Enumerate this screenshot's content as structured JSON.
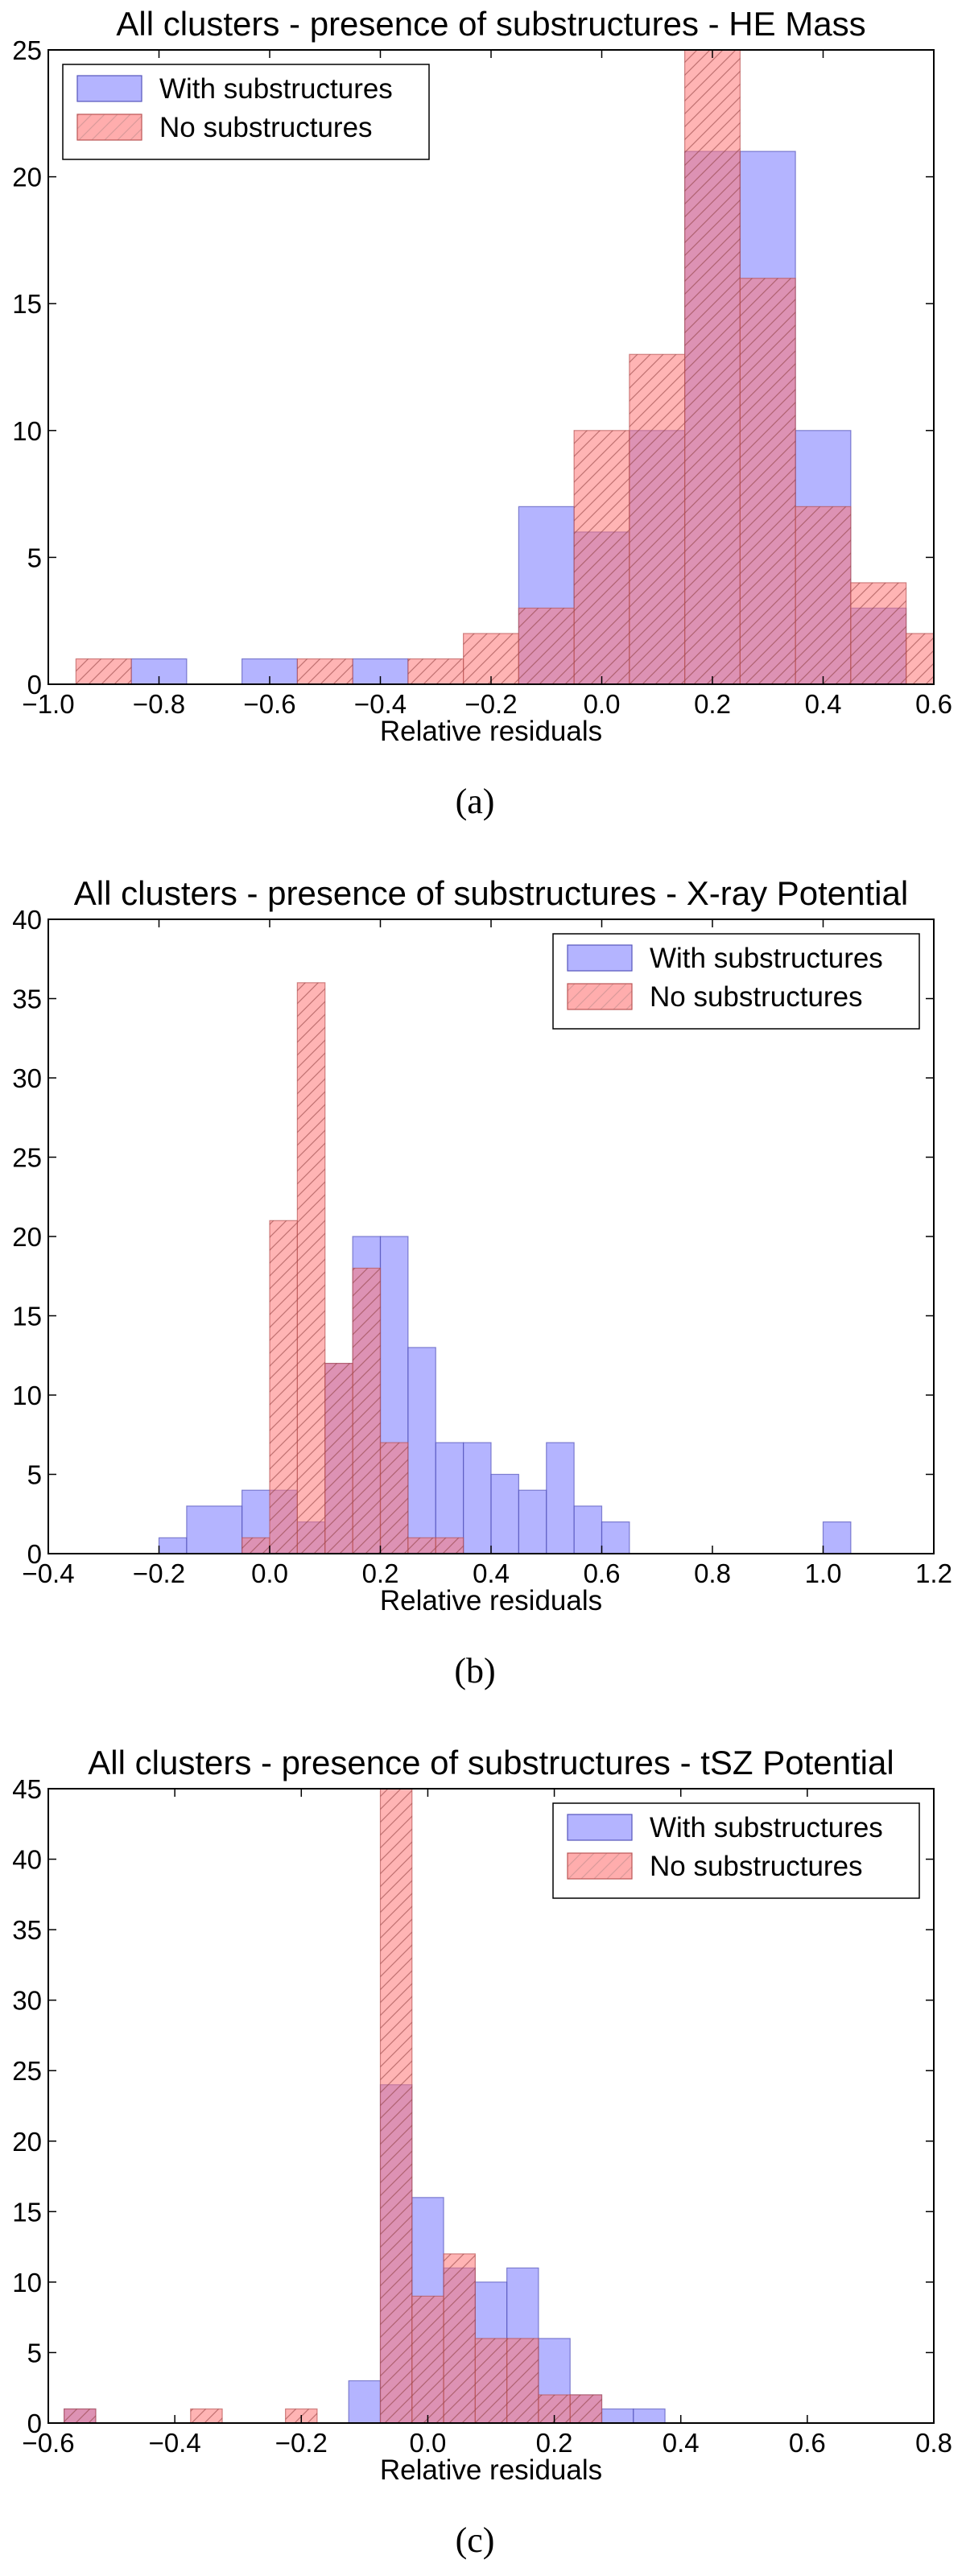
{
  "colors": {
    "with_fill": "#7777ff",
    "with_stroke": "#5555bb",
    "no_fill": "#ff7777",
    "no_stroke": "#bb5555",
    "hatch": "#8a3a3a"
  },
  "chart_data": [
    {
      "type": "bar",
      "title": "All clusters - presence of substructures - HE Mass",
      "xlabel": "Relative residuals",
      "ylabel": "",
      "caption": "(a)",
      "xlim": [
        -1.0,
        0.6
      ],
      "ylim": [
        0,
        25
      ],
      "xticks": [
        "−1.0",
        "−0.8",
        "−0.6",
        "−0.4",
        "−0.2",
        "0.0",
        "0.2",
        "0.4",
        "0.6"
      ],
      "xtick_values": [
        -1.0,
        -0.8,
        -0.6,
        -0.4,
        -0.2,
        0.0,
        0.2,
        0.4,
        0.6
      ],
      "yticks": [
        "0",
        "5",
        "10",
        "15",
        "20",
        "25"
      ],
      "ytick_values": [
        0,
        5,
        10,
        15,
        20,
        25
      ],
      "legend_position": "top-left",
      "series": [
        {
          "name": "With substructures",
          "bins": [
            [
              -0.85,
              -0.75,
              1
            ],
            [
              -0.65,
              -0.55,
              1
            ],
            [
              -0.45,
              -0.35,
              1
            ],
            [
              -0.15,
              -0.05,
              7
            ],
            [
              -0.05,
              0.05,
              6
            ],
            [
              0.05,
              0.15,
              10
            ],
            [
              0.15,
              0.25,
              21
            ],
            [
              0.25,
              0.35,
              21
            ],
            [
              0.35,
              0.45,
              10
            ],
            [
              0.45,
              0.55,
              3
            ]
          ]
        },
        {
          "name": "No substructures",
          "bins": [
            [
              -0.95,
              -0.85,
              1
            ],
            [
              -0.55,
              -0.45,
              1
            ],
            [
              -0.35,
              -0.25,
              1
            ],
            [
              -0.25,
              -0.15,
              2
            ],
            [
              -0.15,
              -0.05,
              3
            ],
            [
              -0.05,
              0.05,
              10
            ],
            [
              0.05,
              0.15,
              13
            ],
            [
              0.15,
              0.25,
              25
            ],
            [
              0.25,
              0.35,
              16
            ],
            [
              0.35,
              0.45,
              7
            ],
            [
              0.45,
              0.55,
              4
            ],
            [
              0.55,
              0.65,
              2
            ]
          ]
        }
      ]
    },
    {
      "type": "bar",
      "title": "All clusters - presence of substructures - X-ray Potential",
      "xlabel": "Relative residuals",
      "ylabel": "",
      "caption": "(b)",
      "xlim": [
        -0.4,
        1.2
      ],
      "ylim": [
        0,
        40
      ],
      "xticks": [
        "−0.4",
        "−0.2",
        "0.0",
        "0.2",
        "0.4",
        "0.6",
        "0.8",
        "1.0",
        "1.2"
      ],
      "xtick_values": [
        -0.4,
        -0.2,
        0.0,
        0.2,
        0.4,
        0.6,
        0.8,
        1.0,
        1.2
      ],
      "yticks": [
        "0",
        "5",
        "10",
        "15",
        "20",
        "25",
        "30",
        "35",
        "40"
      ],
      "ytick_values": [
        0,
        5,
        10,
        15,
        20,
        25,
        30,
        35,
        40
      ],
      "legend_position": "top-right",
      "series": [
        {
          "name": "With substructures",
          "bins": [
            [
              -0.2,
              -0.15,
              1
            ],
            [
              -0.15,
              -0.05,
              3
            ],
            [
              -0.05,
              0.05,
              4
            ],
            [
              0.05,
              0.1,
              2
            ],
            [
              0.1,
              0.15,
              12
            ],
            [
              0.15,
              0.2,
              20
            ],
            [
              0.2,
              0.25,
              20
            ],
            [
              0.25,
              0.3,
              13
            ],
            [
              0.3,
              0.35,
              7
            ],
            [
              0.35,
              0.4,
              7
            ],
            [
              0.4,
              0.45,
              5
            ],
            [
              0.45,
              0.5,
              4
            ],
            [
              0.5,
              0.55,
              7
            ],
            [
              0.55,
              0.6,
              3
            ],
            [
              0.6,
              0.65,
              2
            ],
            [
              1.0,
              1.05,
              2
            ]
          ]
        },
        {
          "name": "No substructures",
          "bins": [
            [
              -0.05,
              0.0,
              1
            ],
            [
              0.0,
              0.05,
              21
            ],
            [
              0.05,
              0.1,
              36
            ],
            [
              0.1,
              0.15,
              12
            ],
            [
              0.15,
              0.2,
              18
            ],
            [
              0.2,
              0.25,
              7
            ],
            [
              0.25,
              0.3,
              1
            ],
            [
              0.3,
              0.35,
              1
            ]
          ]
        }
      ]
    },
    {
      "type": "bar",
      "title": "All clusters - presence of substructures - tSZ Potential",
      "xlabel": "Relative residuals",
      "ylabel": "",
      "caption": "(c)",
      "xlim": [
        -0.6,
        0.8
      ],
      "ylim": [
        0,
        45
      ],
      "xticks": [
        "−0.6",
        "−0.4",
        "−0.2",
        "0.0",
        "0.2",
        "0.4",
        "0.6",
        "0.8"
      ],
      "xtick_values": [
        -0.6,
        -0.4,
        -0.2,
        0.0,
        0.2,
        0.4,
        0.6,
        0.8
      ],
      "yticks": [
        "0",
        "5",
        "10",
        "15",
        "20",
        "25",
        "30",
        "35",
        "40",
        "45"
      ],
      "ytick_values": [
        0,
        5,
        10,
        15,
        20,
        25,
        30,
        35,
        40,
        45
      ],
      "legend_position": "top-right",
      "series": [
        {
          "name": "With substructures",
          "bins": [
            [
              -0.575,
              -0.525,
              1
            ],
            [
              -0.125,
              -0.075,
              3
            ],
            [
              -0.075,
              -0.025,
              24
            ],
            [
              -0.025,
              0.025,
              16
            ],
            [
              0.025,
              0.075,
              11
            ],
            [
              0.075,
              0.125,
              10
            ],
            [
              0.125,
              0.175,
              11
            ],
            [
              0.175,
              0.225,
              6
            ],
            [
              0.225,
              0.275,
              2
            ],
            [
              0.275,
              0.325,
              1
            ],
            [
              0.325,
              0.375,
              1
            ]
          ]
        },
        {
          "name": "No substructures",
          "bins": [
            [
              -0.575,
              -0.525,
              1
            ],
            [
              -0.375,
              -0.325,
              1
            ],
            [
              -0.225,
              -0.175,
              1
            ],
            [
              -0.075,
              -0.025,
              45
            ],
            [
              -0.025,
              0.025,
              9
            ],
            [
              0.025,
              0.075,
              12
            ],
            [
              0.075,
              0.125,
              6
            ],
            [
              0.125,
              0.175,
              6
            ],
            [
              0.175,
              0.225,
              2
            ],
            [
              0.225,
              0.275,
              2
            ]
          ]
        }
      ]
    }
  ]
}
